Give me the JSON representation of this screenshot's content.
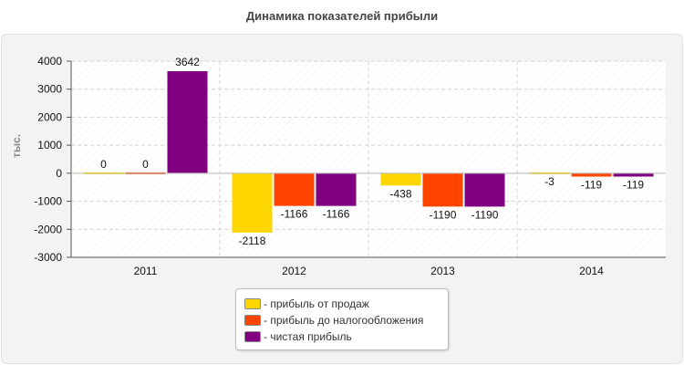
{
  "chart_data": {
    "type": "bar",
    "title": "Динамика показателей прибыли",
    "ylabel": "тыс.",
    "xlabel": "",
    "categories": [
      "2011",
      "2012",
      "2013",
      "2014"
    ],
    "ylim": [
      -3000,
      4000
    ],
    "yticks": [
      -3000,
      -2000,
      -1000,
      0,
      1000,
      2000,
      3000,
      4000
    ],
    "series": [
      {
        "name": "- прибыль от продаж",
        "color": "#ffd700",
        "values": [
          0,
          -2118,
          -438,
          -3
        ]
      },
      {
        "name": "- прибыль до налогообложения",
        "color": "#ff4500",
        "values": [
          0,
          -1166,
          -1190,
          -119
        ]
      },
      {
        "name": "- чистая прибыль",
        "color": "#800080",
        "values": [
          3642,
          -1166,
          -1190,
          -119
        ]
      }
    ],
    "grid": true,
    "legend_position": "bottom-center"
  }
}
